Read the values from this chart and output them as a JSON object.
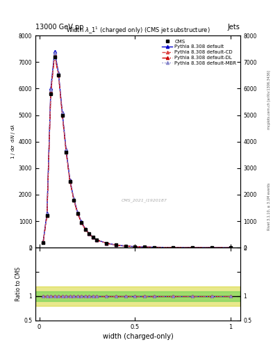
{
  "title": "Width $\\lambda\\_1^1$ (charged only) (CMS jet substructure)",
  "header_left": "13000 GeV pp",
  "header_right": "Jets",
  "xlabel": "width (charged-only)",
  "watermark": "CMS_2021_I1920187",
  "right_label": "mcplots.cern.ch [arXiv:1306.3436]",
  "right_label2": "Rivet 3.1.10, ≥ 3.1M events",
  "x_data": [
    0.02,
    0.04,
    0.06,
    0.08,
    0.1,
    0.12,
    0.14,
    0.16,
    0.18,
    0.2,
    0.22,
    0.24,
    0.26,
    0.28,
    0.3,
    0.35,
    0.4,
    0.45,
    0.5,
    0.55,
    0.6,
    0.7,
    0.8,
    0.9,
    1.0
  ],
  "y_cms": [
    200,
    1200,
    5800,
    7200,
    6500,
    5000,
    3600,
    2500,
    1800,
    1300,
    950,
    700,
    520,
    390,
    290,
    170,
    100,
    60,
    38,
    25,
    17,
    8,
    4,
    2,
    1
  ],
  "y_default": [
    220,
    1300,
    6000,
    7400,
    6600,
    5100,
    3700,
    2550,
    1850,
    1330,
    970,
    710,
    530,
    400,
    295,
    175,
    102,
    62,
    39,
    26,
    18,
    8.5,
    4.2,
    2.1,
    1.1
  ],
  "y_cd": [
    210,
    1250,
    5900,
    7300,
    6550,
    5050,
    3650,
    2520,
    1820,
    1310,
    955,
    705,
    525,
    393,
    292,
    172,
    101,
    61,
    38.5,
    25.5,
    17.5,
    8.2,
    4.1,
    2.05,
    1.05
  ],
  "y_dl": [
    205,
    1220,
    5850,
    7250,
    6520,
    5020,
    3620,
    2500,
    1810,
    1295,
    945,
    698,
    518,
    388,
    288,
    168,
    99,
    60,
    37.5,
    24.5,
    16.5,
    7.9,
    3.9,
    1.95,
    0.95
  ],
  "y_mbr": [
    215,
    1270,
    5950,
    7350,
    6570,
    5070,
    3670,
    2530,
    1840,
    1320,
    962,
    707,
    527,
    397,
    293,
    173,
    101.5,
    61.5,
    39,
    25.8,
    17.8,
    8.3,
    4.15,
    2.08,
    1.08
  ],
  "ylim_main": [
    0,
    8000
  ],
  "ylim_ratio": [
    0.5,
    2.0
  ],
  "yticks_main": [
    0,
    1000,
    2000,
    3000,
    4000,
    5000,
    6000,
    7000,
    8000
  ],
  "yticks_ratio": [
    0.5,
    1.0,
    1.5,
    2.0
  ],
  "xticks": [
    0,
    0.5,
    1.0
  ],
  "color_cms": "#000000",
  "color_default": "#0000cc",
  "color_cd": "#dd4444",
  "color_dl": "#cc0000",
  "color_mbr": "#8888cc",
  "band_green": "#44cc44",
  "band_yellow": "#cccc00",
  "band_alpha_green": 0.45,
  "band_alpha_yellow": 0.45
}
